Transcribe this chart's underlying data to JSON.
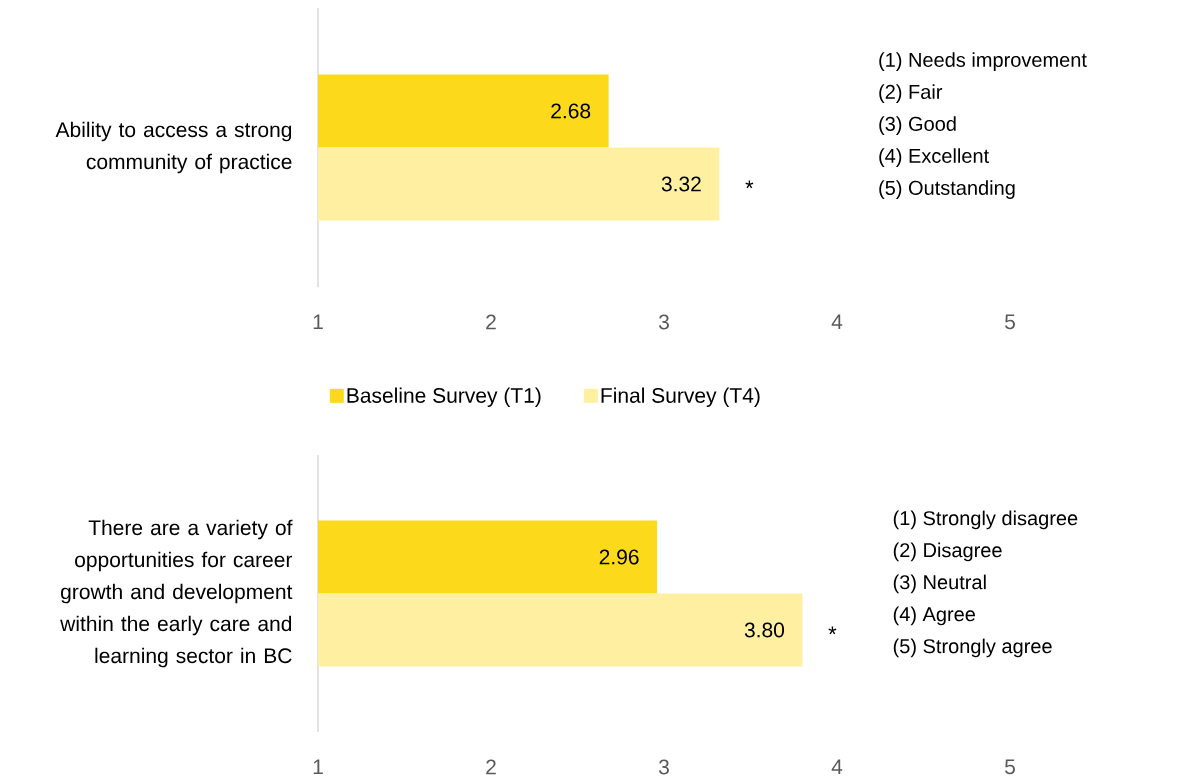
{
  "chart_data": [
    {
      "type": "bar",
      "orientation": "horizontal",
      "categories": [
        "Ability to access a strong community of practice"
      ],
      "series": [
        {
          "name": "Baseline Survey (T1)",
          "color": "#fcda1b",
          "values": [
            2.68
          ],
          "value_labels": [
            "2.68"
          ]
        },
        {
          "name": "Final Survey (T4)",
          "color": "#fef0a0",
          "values": [
            3.32
          ],
          "value_labels": [
            "3.32"
          ]
        }
      ],
      "xlim": [
        1,
        5
      ],
      "xticks": [
        1,
        2,
        3,
        4,
        5
      ],
      "legend": "bottom",
      "annotations": [
        "(1) Needs improvement",
        "(2) Fair",
        "(3) Good",
        "(4) Excellent",
        "(5) Outstanding",
        {
          "text": "*",
          "x": 3.32
        }
      ]
    },
    {
      "type": "bar",
      "orientation": "horizontal",
      "categories": [
        "There are a variety of opportunities for career growth and development within the early care and learning sector in BC"
      ],
      "series": [
        {
          "color": "#fcda1b",
          "values": [
            2.96
          ],
          "value_labels": [
            "2.96"
          ]
        },
        {
          "color": "#fef0a0",
          "values": [
            3.8
          ],
          "value_labels": [
            "3.80"
          ]
        }
      ],
      "xlim": [
        1,
        5
      ],
      "xticks": [
        1,
        2,
        3,
        4,
        5
      ],
      "annotations": [
        "(1) Strongly disagree",
        "(2) Disagree",
        "(3) Neutral",
        "(4) Agree",
        "(5) Strongly agree",
        {
          "text": "*",
          "x": 3.8
        }
      ]
    }
  ]
}
